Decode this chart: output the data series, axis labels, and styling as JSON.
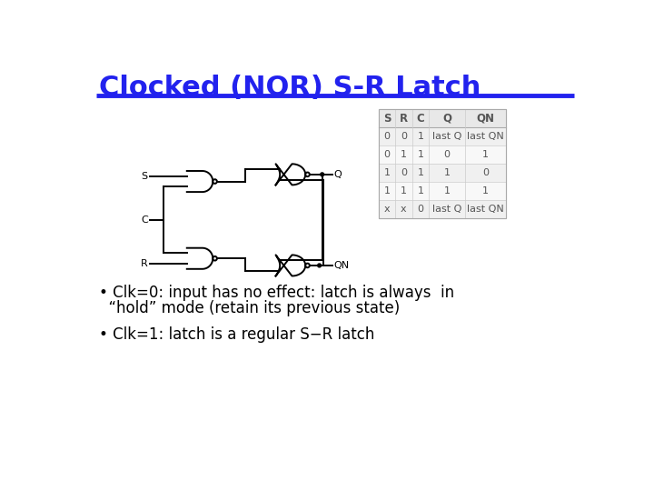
{
  "title": "Clocked (NOR) S-R Latch",
  "title_color": "#2222EE",
  "title_fontsize": 22,
  "line_color": "#2222EE",
  "bg_color": "#FFFFFF",
  "bullet1_line1": "• Clk=0: input has no effect: latch is always  in",
  "bullet1_line2": "  “hold” mode (retain its previous state)",
  "bullet2": "• Clk=1: latch is a regular S−R latch",
  "table_headers": [
    "S",
    "R",
    "C",
    "Q",
    "QN"
  ],
  "table_rows": [
    [
      "0",
      "0",
      "1",
      "last Q",
      "last QN"
    ],
    [
      "0",
      "1",
      "1",
      "0",
      "1"
    ],
    [
      "1",
      "0",
      "1",
      "1",
      "0"
    ],
    [
      "1",
      "1",
      "1",
      "1",
      "1"
    ],
    [
      "x",
      "x",
      "0",
      "last Q",
      "last QN"
    ]
  ],
  "gate_color": "#000000",
  "table_header_color": "#555555",
  "table_text_color": "#555555"
}
